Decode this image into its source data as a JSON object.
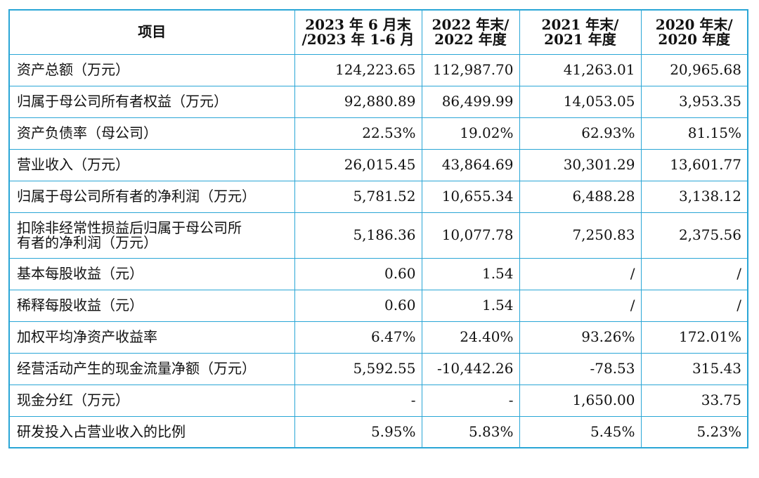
{
  "header": {
    "item": "项目",
    "periods": [
      [
        "2023 年 6 月末",
        "/2023 年 1-6 月"
      ],
      [
        "2022 年末/",
        "2022 年度"
      ],
      [
        "2021 年末/",
        "2021 年度"
      ],
      [
        "2020 年末/",
        "2020 年度"
      ]
    ]
  },
  "rows": [
    {
      "label": [
        "资产总额（万元）"
      ],
      "values": [
        "124,223.65",
        "112,987.70",
        "41,263.01",
        "20,965.68"
      ]
    },
    {
      "label": [
        "归属于母公司所有者权益（万元）"
      ],
      "values": [
        "92,880.89",
        "86,499.99",
        "14,053.05",
        "3,953.35"
      ]
    },
    {
      "label": [
        "资产负债率（母公司）"
      ],
      "values": [
        "22.53%",
        "19.02%",
        "62.93%",
        "81.15%"
      ]
    },
    {
      "label": [
        "营业收入（万元）"
      ],
      "values": [
        "26,015.45",
        "43,864.69",
        "30,301.29",
        "13,601.77"
      ]
    },
    {
      "label": [
        "归属于母公司所有者的净利润（万元）"
      ],
      "values": [
        "5,781.52",
        "10,655.34",
        "6,488.28",
        "3,138.12"
      ]
    },
    {
      "label": [
        "扣除非经常性损益后归属于母公司所",
        "有者的净利润（万元）"
      ],
      "values": [
        "5,186.36",
        "10,077.78",
        "7,250.83",
        "2,375.56"
      ]
    },
    {
      "label": [
        "基本每股收益（元）"
      ],
      "values": [
        "0.60",
        "1.54",
        "/",
        "/"
      ]
    },
    {
      "label": [
        "稀释每股收益（元）"
      ],
      "values": [
        "0.60",
        "1.54",
        "/",
        "/"
      ]
    },
    {
      "label": [
        "加权平均净资产收益率"
      ],
      "values": [
        "6.47%",
        "24.40%",
        "93.26%",
        "172.01%"
      ]
    },
    {
      "label": [
        "经营活动产生的现金流量净额（万元）"
      ],
      "values": [
        "5,592.55",
        "-10,442.26",
        "-78.53",
        "315.43"
      ]
    },
    {
      "label": [
        "现金分红（万元）"
      ],
      "values": [
        "-",
        "-",
        "1,650.00",
        "33.75"
      ]
    },
    {
      "label": [
        "研发投入占营业收入的比例"
      ],
      "values": [
        "5.95%",
        "5.83%",
        "5.45%",
        "5.23%"
      ]
    }
  ]
}
